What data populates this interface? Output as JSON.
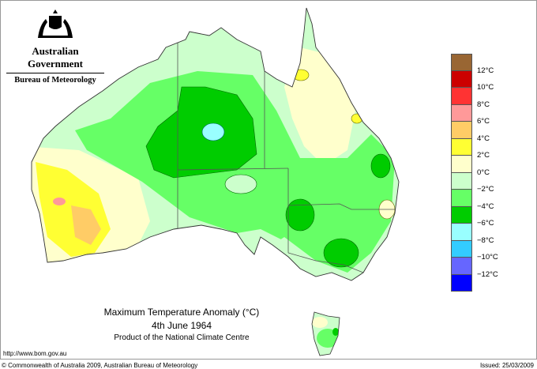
{
  "header": {
    "agency": "Australian Government",
    "bureau": "Bureau of Meteorology",
    "logo_icon": "coat-of-arms-icon"
  },
  "map": {
    "title": "Maximum Temperature Anomaly (°C)",
    "date": "4th June 1964",
    "product": "Product of the National Climate Centre"
  },
  "legend": {
    "colors": [
      "#996633",
      "#cc0000",
      "#ff3333",
      "#ff9999",
      "#ffcc66",
      "#ffff33",
      "#ffffcc",
      "#ccffcc",
      "#66ff66",
      "#00cc00",
      "#99ffff",
      "#33ccff",
      "#6666ff",
      "#0000ff"
    ],
    "labels": [
      "12°C",
      "10°C",
      "8°C",
      "6°C",
      "4°C",
      "2°C",
      "0°C",
      "−2°C",
      "−4°C",
      "−6°C",
      "−8°C",
      "−10°C",
      "−12°C"
    ]
  },
  "footer": {
    "url": "http://www.bom.gov.au",
    "copyright": "© Commonwealth of Australia 2009, Australian Bureau of Meteorology",
    "issued": "Issued: 25/03/2009"
  }
}
